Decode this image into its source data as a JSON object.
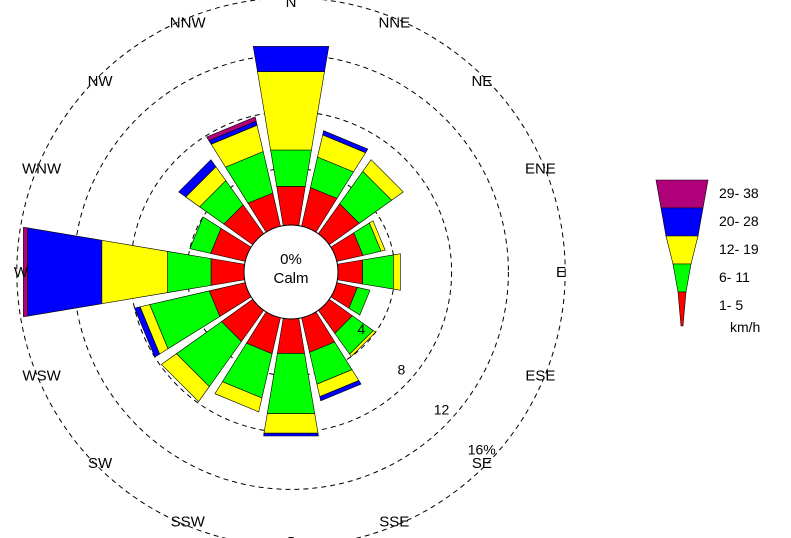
{
  "chart_data": {
    "type": "wind-rose",
    "directions": [
      "N",
      "NNE",
      "NE",
      "ENE",
      "E",
      "ESE",
      "SE",
      "SSE",
      "S",
      "SSW",
      "SW",
      "WSW",
      "W",
      "WNW",
      "NW",
      "NNW"
    ],
    "ring_values": [
      4,
      8,
      12,
      16
    ],
    "ring_labels": [
      "4",
      "8",
      "12",
      "16%"
    ],
    "calm": {
      "value_label": "0%",
      "label": "Calm"
    },
    "speed_bins": [
      {
        "label": "1- 5",
        "color": "#ff0000"
      },
      {
        "label": "6- 11",
        "color": "#00ff00"
      },
      {
        "label": "12- 19",
        "color": "#ffff00"
      },
      {
        "label": "20- 28",
        "color": "#0000ff"
      },
      {
        "label": "29- 38",
        "color": "#b0007a"
      }
    ],
    "unit_label": "km/h",
    "cumulative_percent": {
      "N": [
        2.8,
        5.4,
        11.0,
        12.8,
        12.8
      ],
      "NNE": [
        2.8,
        5.0,
        6.6,
        6.9,
        6.9
      ],
      "NE": [
        2.6,
        5.4,
        6.4,
        6.4,
        6.4
      ],
      "ENE": [
        1.9,
        3.2,
        3.5,
        3.5,
        3.5
      ],
      "E": [
        1.8,
        4.0,
        4.5,
        4.5,
        4.5
      ],
      "ESE": [
        1.5,
        2.4,
        2.4,
        2.4,
        2.4
      ],
      "SE": [
        2.0,
        3.8,
        4.0,
        4.0,
        4.0
      ],
      "SSE": [
        2.5,
        4.8,
        5.7,
        6.0,
        6.0
      ],
      "S": [
        2.5,
        6.8,
        8.2,
        8.4,
        8.4
      ],
      "SSW": [
        2.6,
        5.8,
        6.8,
        6.8,
        6.8
      ],
      "SW": [
        2.7,
        6.6,
        7.9,
        7.9,
        7.9
      ],
      "WSW": [
        2.6,
        6.9,
        7.6,
        8.0,
        8.0
      ],
      "W": [
        2.4,
        5.5,
        10.2,
        15.5,
        15.8
      ],
      "WNW": [
        2.5,
        4.0,
        4.0,
        4.0,
        4.0
      ],
      "NW": [
        2.5,
        4.6,
        5.8,
        6.4,
        6.4
      ],
      "NNW": [
        2.4,
        5.4,
        7.3,
        7.6,
        7.9
      ]
    }
  }
}
